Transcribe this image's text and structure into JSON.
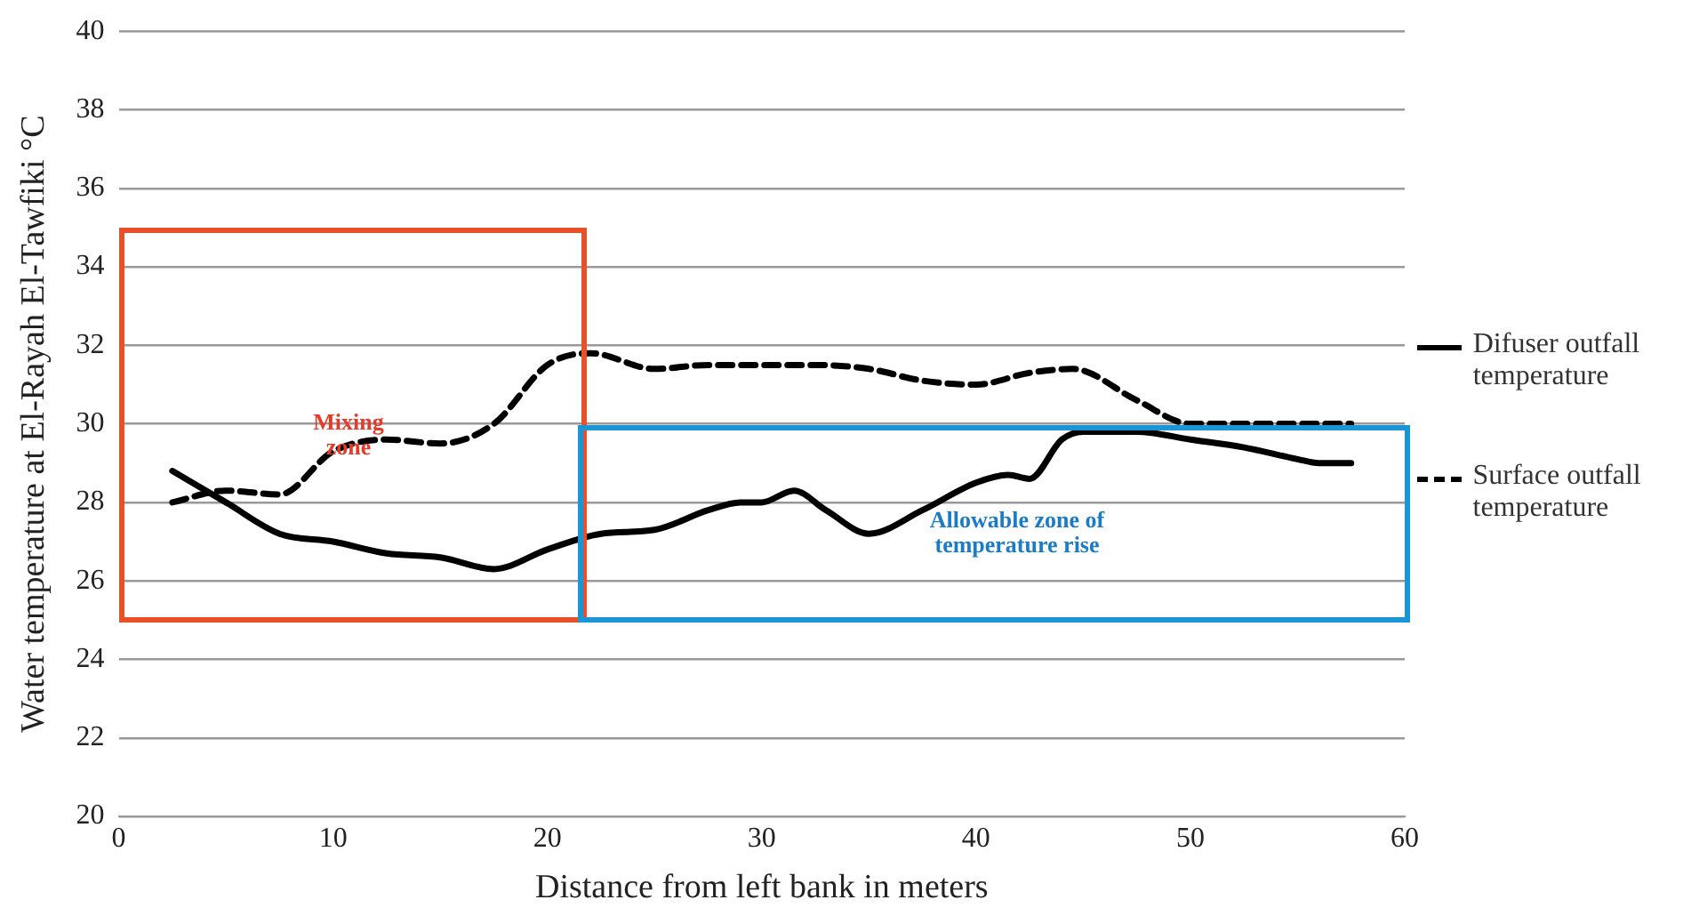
{
  "chart_data": {
    "type": "line",
    "xlabel": "Distance from left bank in meters",
    "ylabel": "Water temperature at El-Rayah El-Tawfiki °C",
    "xlim": [
      0,
      60
    ],
    "xticks": [
      0,
      10,
      20,
      30,
      40,
      50,
      60
    ],
    "ylim": [
      20,
      40
    ],
    "yticks": [
      20,
      22,
      24,
      26,
      28,
      30,
      32,
      34,
      36,
      38,
      40
    ],
    "grid": "y",
    "legend": "right",
    "marker": "none",
    "annotations": [
      "Mixing zone",
      "Allowable zone of temperature rise"
    ],
    "series": [
      {
        "name": "Difuser outfall temperature",
        "color": "#000000",
        "line_style": "solid",
        "x": [
          2.5,
          5,
          7.5,
          10,
          12.5,
          15,
          17.5,
          20,
          22.5,
          25,
          27.5,
          29,
          30,
          31.5,
          33,
          35,
          37.5,
          40,
          41.5,
          42.5,
          44,
          45,
          47.5,
          50,
          52.5,
          55,
          56,
          57.5
        ],
        "values": [
          28.8,
          28.0,
          27.2,
          27.0,
          26.7,
          26.6,
          26.3,
          26.8,
          27.2,
          27.3,
          27.8,
          28.0,
          28.0,
          28.3,
          27.8,
          27.2,
          27.8,
          28.5,
          28.7,
          28.6,
          29.6,
          29.8,
          29.8,
          29.6,
          29.4,
          29.1,
          29.0,
          29.0
        ]
      },
      {
        "name": "Surface outfall temperature",
        "color": "#000000",
        "line_style": "dashed",
        "x": [
          2.5,
          5,
          7.5,
          10,
          12.5,
          15,
          17.5,
          20,
          22,
          25,
          27.5,
          30,
          32.5,
          35,
          37.5,
          40,
          42.5,
          44.5,
          47.5,
          50,
          52.5,
          55,
          57.5
        ],
        "values": [
          28.0,
          28.3,
          28.2,
          29.3,
          29.6,
          29.5,
          30.0,
          31.5,
          31.8,
          31.4,
          31.5,
          31.5,
          31.5,
          31.4,
          31.1,
          31.0,
          31.3,
          31.4,
          30.6,
          30.0,
          30.0,
          30.0,
          30.0
        ]
      }
    ]
  }
}
